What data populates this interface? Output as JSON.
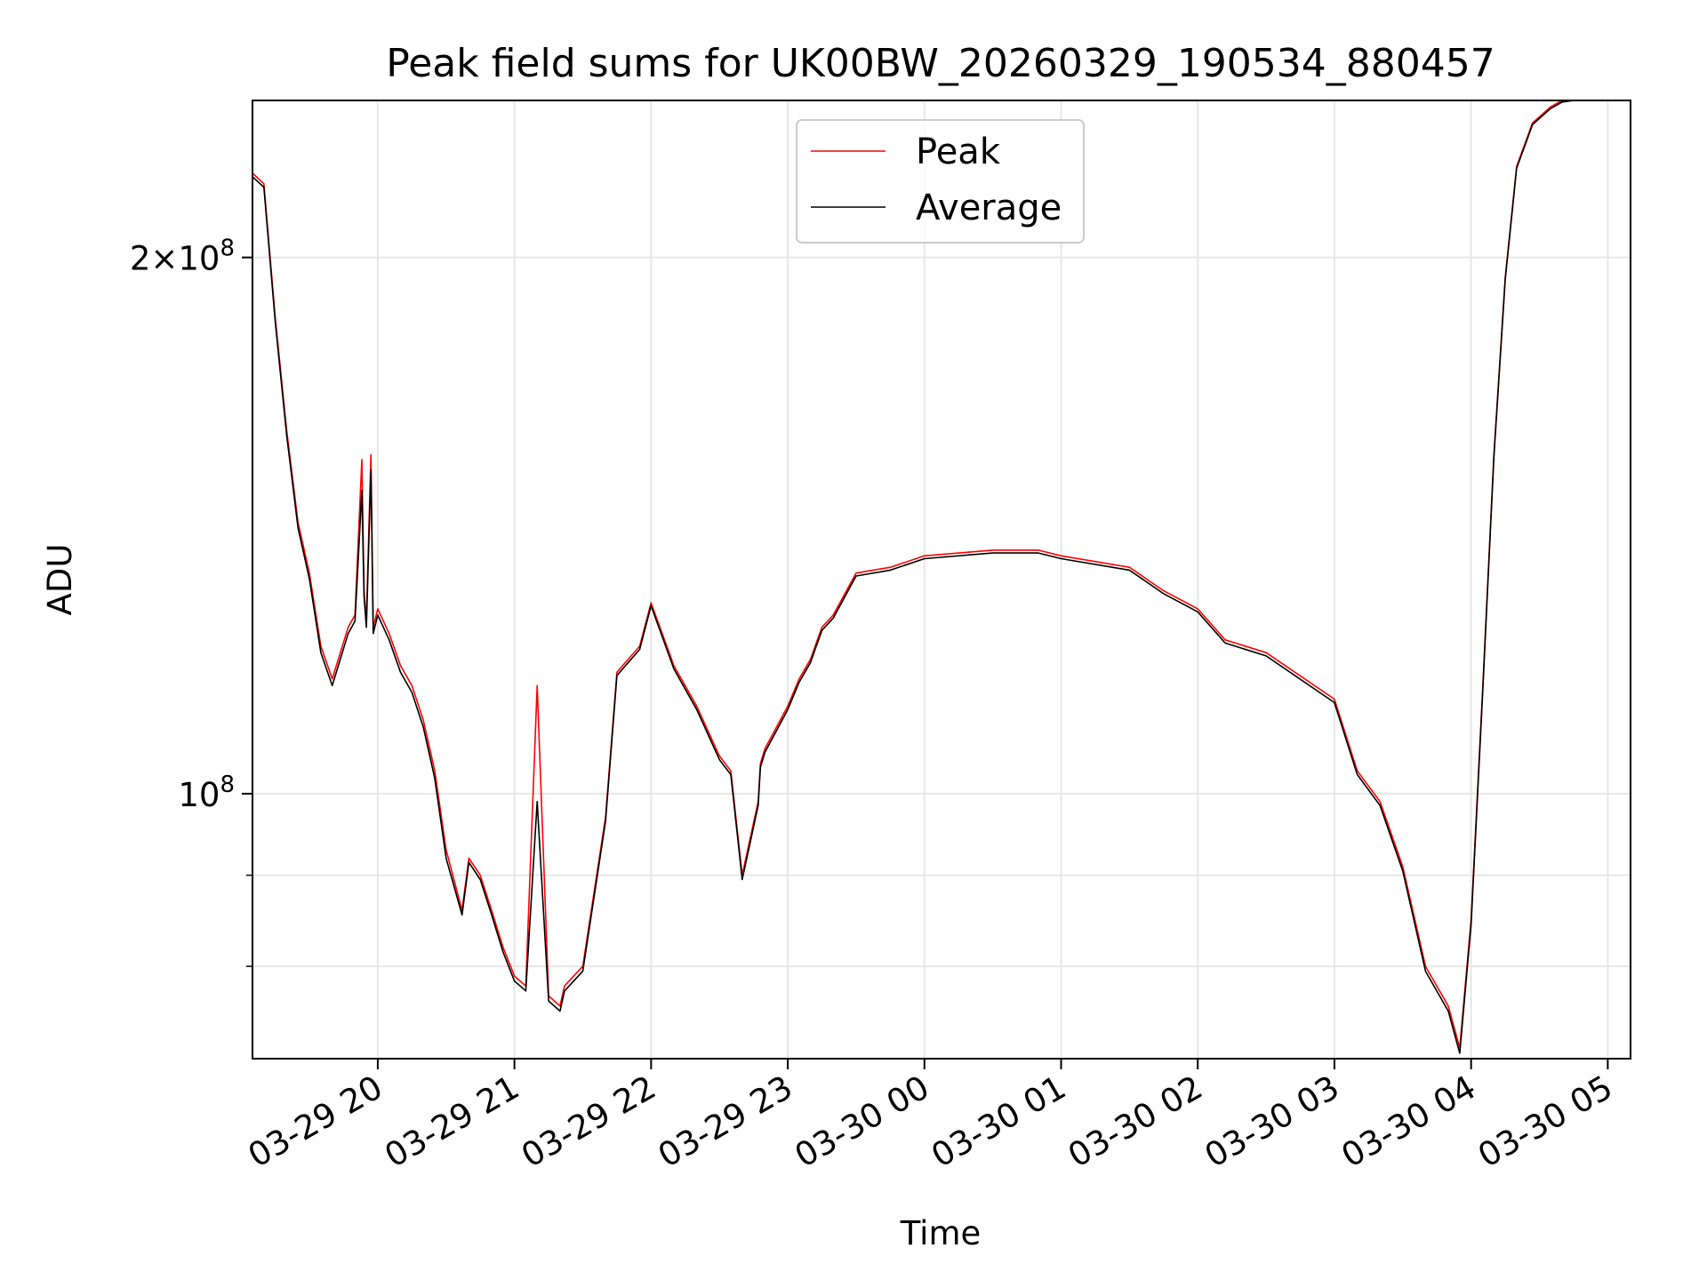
{
  "chart_data": {
    "type": "line",
    "title": "Peak field sums for UK00BW_20260329_190534_880457",
    "xlabel": "Time",
    "ylabel": "ADU",
    "y_scale": "log",
    "ylim": [
      71000000,
      245000000
    ],
    "xlim": [
      "2026-03-29 19:05",
      "2026-03-30 05:10"
    ],
    "x_ticks": [
      "2026-03-29 20:00",
      "2026-03-29 21:00",
      "2026-03-29 22:00",
      "2026-03-29 23:00",
      "2026-03-30 00:00",
      "2026-03-30 01:00",
      "2026-03-30 02:00",
      "2026-03-30 03:00",
      "2026-03-30 04:00",
      "2026-03-30 05:00"
    ],
    "x_tick_labels": [
      "03-29 20",
      "03-29 21",
      "03-29 22",
      "03-29 23",
      "03-30 00",
      "03-30 01",
      "03-30 02",
      "03-30 03",
      "03-30 04",
      "03-30 05"
    ],
    "y_ticks": [
      100000000,
      200000000
    ],
    "y_tick_labels": [
      {
        "mantissa": "",
        "exp": "8"
      },
      {
        "mantissa": "2×",
        "exp": "8"
      }
    ],
    "grid": true,
    "legend": "upper center",
    "series": [
      {
        "name": "Peak",
        "color": "#ff0000",
        "x": [
          "2026-03-29 19:05",
          "2026-03-29 19:10",
          "2026-03-29 19:15",
          "2026-03-29 19:20",
          "2026-03-29 19:25",
          "2026-03-29 19:30",
          "2026-03-29 19:35",
          "2026-03-29 19:40",
          "2026-03-29 19:47",
          "2026-03-29 19:50",
          "2026-03-29 19:53",
          "2026-03-29 19:54",
          "2026-03-29 19:55",
          "2026-03-29 19:57",
          "2026-03-29 19:58",
          "2026-03-29 20:00",
          "2026-03-29 20:05",
          "2026-03-29 20:10",
          "2026-03-29 20:15",
          "2026-03-29 20:20",
          "2026-03-29 20:25",
          "2026-03-29 20:30",
          "2026-03-29 20:37",
          "2026-03-29 20:40",
          "2026-03-29 20:45",
          "2026-03-29 20:50",
          "2026-03-29 20:55",
          "2026-03-29 21:00",
          "2026-03-29 21:05",
          "2026-03-29 21:10",
          "2026-03-29 21:15",
          "2026-03-29 21:20",
          "2026-03-29 21:21",
          "2026-03-29 21:22",
          "2026-03-29 21:30",
          "2026-03-29 21:40",
          "2026-03-29 21:45",
          "2026-03-29 21:50",
          "2026-03-29 21:55",
          "2026-03-29 22:00",
          "2026-03-29 22:10",
          "2026-03-29 22:20",
          "2026-03-29 22:30",
          "2026-03-29 22:35",
          "2026-03-29 22:40",
          "2026-03-29 22:47",
          "2026-03-29 22:48",
          "2026-03-29 22:50",
          "2026-03-29 23:00",
          "2026-03-29 23:05",
          "2026-03-29 23:10",
          "2026-03-29 23:12",
          "2026-03-29 23:15",
          "2026-03-29 23:20",
          "2026-03-29 23:30",
          "2026-03-29 23:45",
          "2026-03-30 00:00",
          "2026-03-30 00:30",
          "2026-03-30 00:50",
          "2026-03-30 01:00",
          "2026-03-30 01:30",
          "2026-03-30 01:45",
          "2026-03-30 02:00",
          "2026-03-30 02:12",
          "2026-03-30 02:30",
          "2026-03-30 03:00",
          "2026-03-30 03:10",
          "2026-03-30 03:20",
          "2026-03-30 03:30",
          "2026-03-30 03:40",
          "2026-03-30 03:50",
          "2026-03-30 03:55",
          "2026-03-30 04:00",
          "2026-03-30 04:05",
          "2026-03-30 04:10",
          "2026-03-30 04:15",
          "2026-03-30 04:20",
          "2026-03-30 04:27",
          "2026-03-30 04:35",
          "2026-03-30 04:40",
          "2026-03-30 04:45",
          "2026-03-30 04:50",
          "2026-03-30 04:55",
          "2026-03-30 05:00",
          "2026-03-30 05:05",
          "2026-03-30 05:10"
        ],
        "values": [
          223000000,
          220000000,
          185000000,
          160000000,
          142000000,
          133000000,
          121000000,
          116000000,
          124000000,
          126000000,
          154000000,
          130000000,
          125000000,
          155000000,
          124000000,
          127000000,
          123000000,
          118000000,
          115000000,
          110000000,
          103000000,
          93000000,
          86000000,
          92000000,
          90000000,
          86000000,
          82000000,
          79000000,
          78000000,
          115000000,
          77000000,
          76000000,
          77000000,
          78000000,
          80000000,
          97000000,
          117000000,
          119000000,
          121000000,
          128000000,
          118000000,
          112000000,
          105000000,
          103000000,
          90000000,
          99000000,
          104000000,
          106000000,
          112000000,
          116000000,
          119000000,
          121000000,
          124000000,
          126000000,
          133000000,
          134000000,
          136000000,
          137000000,
          137000000,
          136000000,
          134000000,
          130000000,
          127000000,
          122000000,
          120000000,
          113000000,
          103000000,
          99000000,
          91000000,
          80000000,
          76000000,
          72000000,
          85000000,
          114000000,
          155000000,
          195000000,
          225000000,
          238000000,
          243000000,
          245000000,
          245000000,
          245000000,
          245000000,
          245000000,
          245000000,
          245000000
        ],
        "note_unused": ""
      },
      {
        "name": "Average",
        "color": "#000000",
        "x": [
          "2026-03-29 19:05",
          "2026-03-29 19:10",
          "2026-03-29 19:15",
          "2026-03-29 19:20",
          "2026-03-29 19:25",
          "2026-03-29 19:30",
          "2026-03-29 19:35",
          "2026-03-29 19:40",
          "2026-03-29 19:47",
          "2026-03-29 19:50",
          "2026-03-29 19:53",
          "2026-03-29 19:54",
          "2026-03-29 19:55",
          "2026-03-29 19:57",
          "2026-03-29 19:58",
          "2026-03-29 20:00",
          "2026-03-29 20:05",
          "2026-03-29 20:10",
          "2026-03-29 20:15",
          "2026-03-29 20:20",
          "2026-03-29 20:25",
          "2026-03-29 20:30",
          "2026-03-29 20:37",
          "2026-03-29 20:40",
          "2026-03-29 20:45",
          "2026-03-29 20:50",
          "2026-03-29 20:55",
          "2026-03-29 21:00",
          "2026-03-29 21:05",
          "2026-03-29 21:10",
          "2026-03-29 21:15",
          "2026-03-29 21:20",
          "2026-03-29 21:21",
          "2026-03-29 21:22",
          "2026-03-29 21:30",
          "2026-03-29 21:40",
          "2026-03-29 21:45",
          "2026-03-29 21:50",
          "2026-03-29 21:55",
          "2026-03-29 22:00",
          "2026-03-29 22:10",
          "2026-03-29 22:20",
          "2026-03-29 22:30",
          "2026-03-29 22:35",
          "2026-03-29 22:40",
          "2026-03-29 22:47",
          "2026-03-29 22:48",
          "2026-03-29 22:50",
          "2026-03-29 23:00",
          "2026-03-29 23:05",
          "2026-03-29 23:10",
          "2026-03-29 23:12",
          "2026-03-29 23:15",
          "2026-03-29 23:20",
          "2026-03-29 23:30",
          "2026-03-29 23:45",
          "2026-03-30 00:00",
          "2026-03-30 00:30",
          "2026-03-30 00:50",
          "2026-03-30 01:00",
          "2026-03-30 01:30",
          "2026-03-30 01:45",
          "2026-03-30 02:00",
          "2026-03-30 02:12",
          "2026-03-30 02:30",
          "2026-03-30 03:00",
          "2026-03-30 03:10",
          "2026-03-30 03:20",
          "2026-03-30 03:30",
          "2026-03-30 03:40",
          "2026-03-30 03:50",
          "2026-03-30 03:55",
          "2026-03-30 04:00",
          "2026-03-30 04:05",
          "2026-03-30 04:10",
          "2026-03-30 04:15",
          "2026-03-30 04:20",
          "2026-03-30 04:27",
          "2026-03-30 04:35",
          "2026-03-30 04:40",
          "2026-03-30 04:45",
          "2026-03-30 04:50",
          "2026-03-30 04:55",
          "2026-03-30 05:00",
          "2026-03-30 05:05",
          "2026-03-30 05:10"
        ],
        "values": [
          222000000,
          219000000,
          184000000,
          159000000,
          141000000,
          132000000,
          120000000,
          115000000,
          123000000,
          125000000,
          148000000,
          129000000,
          124000000,
          152000000,
          123000000,
          126000000,
          122000000,
          117000000,
          114000000,
          109000000,
          102000000,
          92000000,
          85500000,
          91500000,
          89500000,
          85500000,
          81500000,
          78500000,
          77500000,
          99000000,
          76500000,
          75500000,
          76500000,
          77500000,
          79500000,
          96500000,
          116500000,
          118500000,
          120500000,
          127500000,
          117500000,
          111500000,
          104500000,
          102500000,
          89500000,
          98500000,
          103500000,
          105500000,
          111500000,
          115500000,
          118500000,
          120500000,
          123500000,
          125500000,
          132500000,
          133500000,
          135500000,
          136500000,
          136500000,
          135500000,
          133500000,
          129500000,
          126500000,
          121500000,
          119500000,
          112500000,
          102500000,
          98500000,
          90500000,
          79500000,
          75500000,
          71500000,
          84500000,
          113500000,
          154500000,
          194500000,
          224500000,
          237500000,
          242500000,
          244500000,
          245000000,
          245000000,
          245000000,
          245000000,
          245000000,
          245000000
        ]
      }
    ]
  }
}
